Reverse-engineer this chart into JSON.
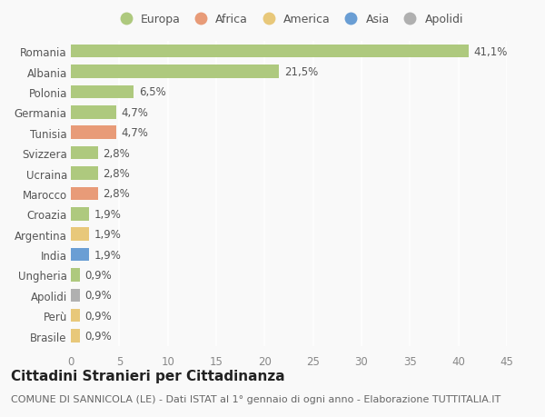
{
  "categories": [
    "Romania",
    "Albania",
    "Polonia",
    "Germania",
    "Tunisia",
    "Svizzera",
    "Ucraina",
    "Marocco",
    "Croazia",
    "Argentina",
    "India",
    "Ungheria",
    "Apolidi",
    "Perù",
    "Brasile"
  ],
  "values": [
    41.1,
    21.5,
    6.5,
    4.7,
    4.7,
    2.8,
    2.8,
    2.8,
    1.9,
    1.9,
    1.9,
    0.9,
    0.9,
    0.9,
    0.9
  ],
  "labels": [
    "41,1%",
    "21,5%",
    "6,5%",
    "4,7%",
    "4,7%",
    "2,8%",
    "2,8%",
    "2,8%",
    "1,9%",
    "1,9%",
    "1,9%",
    "0,9%",
    "0,9%",
    "0,9%",
    "0,9%"
  ],
  "colors": [
    "#aec97e",
    "#aec97e",
    "#aec97e",
    "#aec97e",
    "#e89b78",
    "#aec97e",
    "#aec97e",
    "#e89b78",
    "#aec97e",
    "#e8c87a",
    "#6a9ed4",
    "#aec97e",
    "#b0b0b0",
    "#e8c87a",
    "#e8c87a"
  ],
  "legend": [
    {
      "label": "Europa",
      "color": "#aec97e"
    },
    {
      "label": "Africa",
      "color": "#e89b78"
    },
    {
      "label": "America",
      "color": "#e8c87a"
    },
    {
      "label": "Asia",
      "color": "#6a9ed4"
    },
    {
      "label": "Apolidi",
      "color": "#b0b0b0"
    }
  ],
  "xlim": [
    0,
    45
  ],
  "xticks": [
    0,
    5,
    10,
    15,
    20,
    25,
    30,
    35,
    40,
    45
  ],
  "title": "Cittadini Stranieri per Cittadinanza",
  "subtitle": "COMUNE DI SANNICOLA (LE) - Dati ISTAT al 1° gennaio di ogni anno - Elaborazione TUTTITALIA.IT",
  "background_color": "#f9f9f9",
  "grid_color": "#ffffff",
  "bar_height": 0.65,
  "label_fontsize": 8.5,
  "tick_fontsize": 8.5,
  "title_fontsize": 11,
  "subtitle_fontsize": 8,
  "legend_fontsize": 9
}
